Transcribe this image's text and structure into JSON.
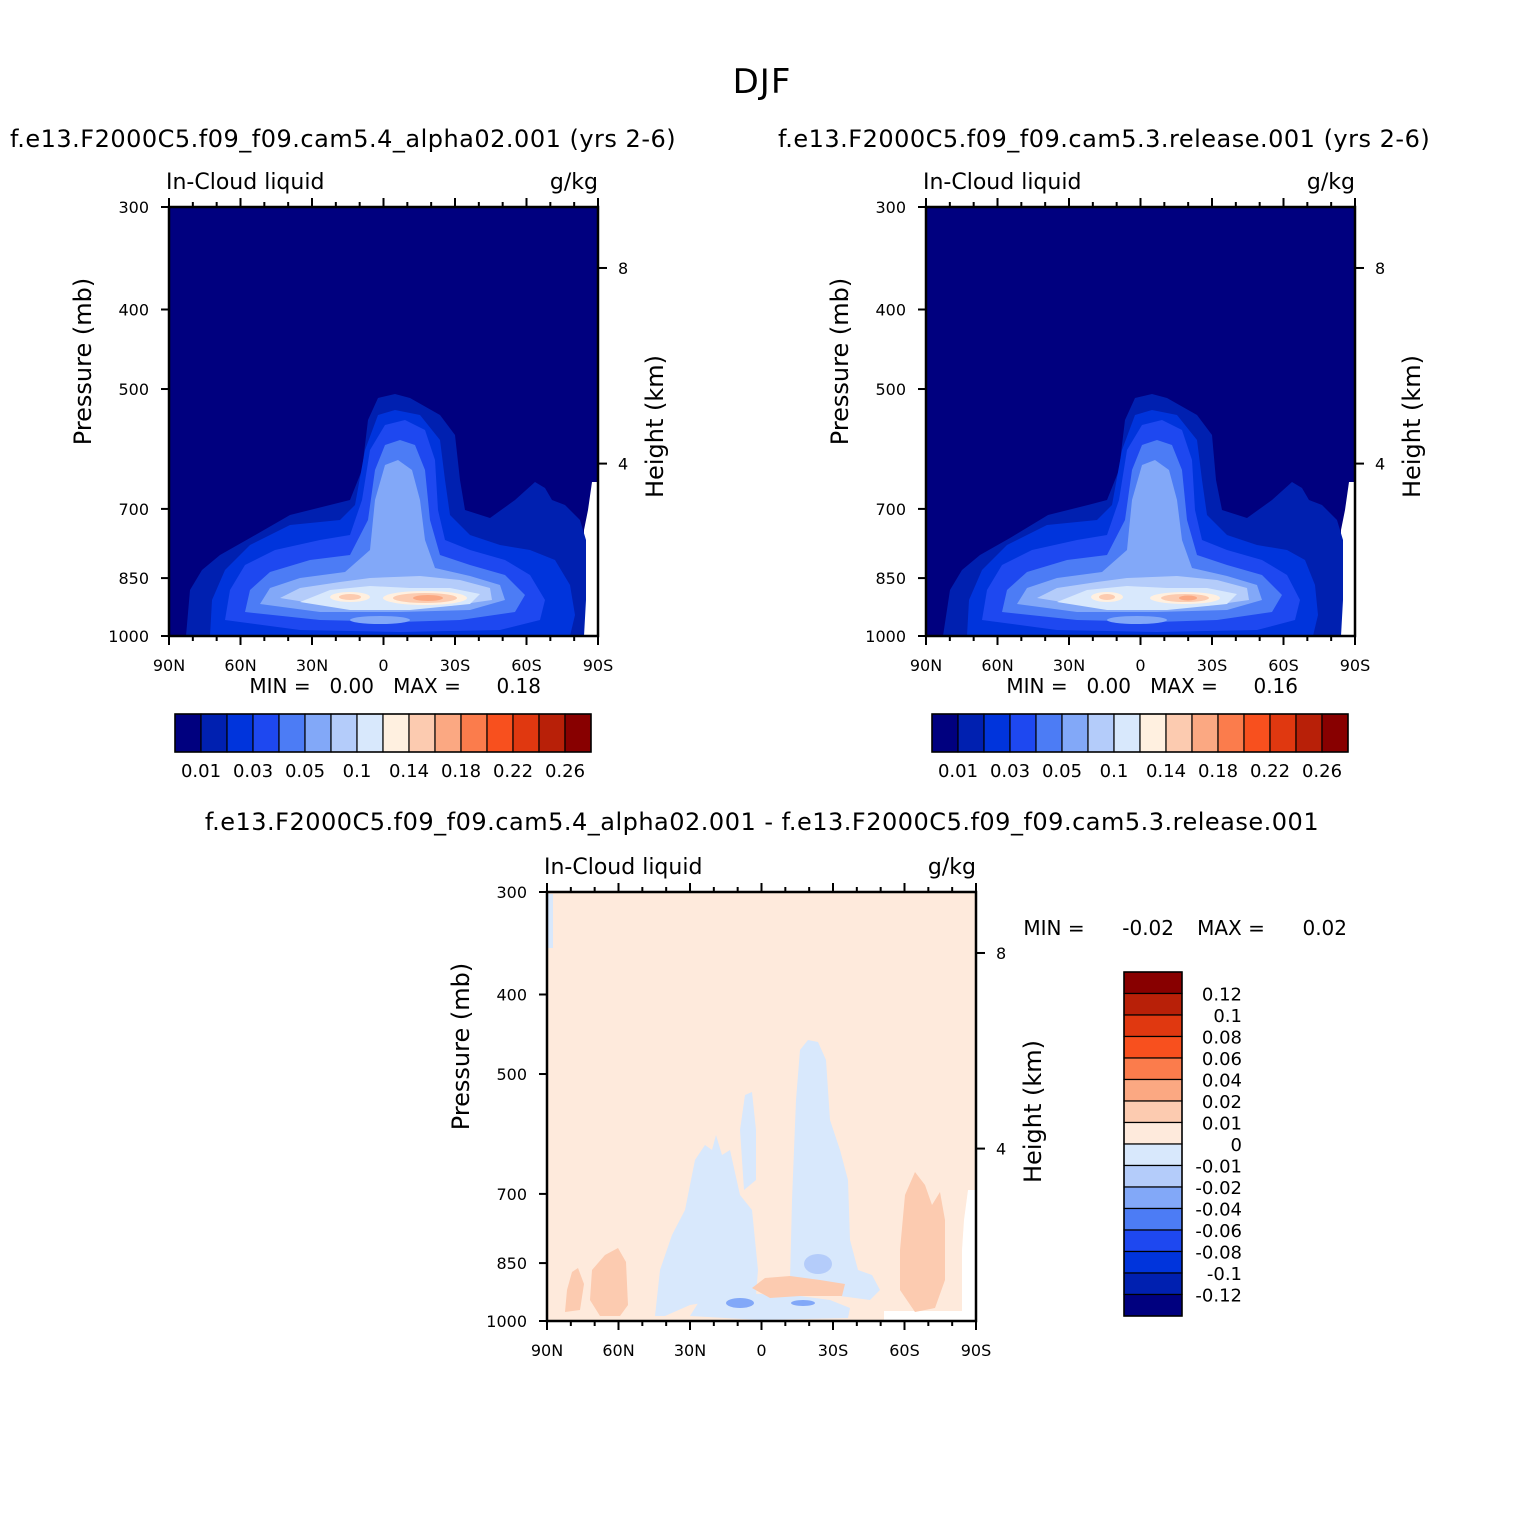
{
  "season": "DJF",
  "colors": {
    "seq": [
      "#00007f",
      "#0020b0",
      "#0034dc",
      "#1e48f0",
      "#4c7cf5",
      "#82a8f8",
      "#b4ccfa",
      "#d8e8fc",
      "#fff0e0",
      "#fccbb0",
      "#fba882",
      "#fb7c4c",
      "#f8501e",
      "#e03810",
      "#b82008",
      "#880000"
    ],
    "diff_seq": [
      "#00007f",
      "#0020b0",
      "#0034dc",
      "#1e48f0",
      "#4c7cf5",
      "#82a8f8",
      "#b4ccfa",
      "#d8e8fc",
      "#feeadc",
      "#fccbb0",
      "#fba882",
      "#fb7c4c",
      "#f8501e",
      "#e03810",
      "#b82008",
      "#880000"
    ]
  },
  "chart_data": [
    {
      "type": "heatmap",
      "title": "f.e13.F2000C5.f09_f09.cam5.4_alpha02.001 (yrs 2-6)",
      "left_label": "In-Cloud liquid",
      "right_label": "g/kg",
      "ylabel": "Pressure (mb)",
      "y2label": "Height (km)",
      "xticks": [
        "90N",
        "60N",
        "30N",
        "0",
        "30S",
        "60S",
        "90S"
      ],
      "yticks": [
        "300",
        "400",
        "500",
        "700",
        "850",
        "1000"
      ],
      "y2ticks": [
        "8",
        "4"
      ],
      "ylim": [
        1000,
        300
      ],
      "x_range": [
        "90N",
        "90S"
      ],
      "min_label": "MIN =",
      "min_value": "0.00",
      "max_label": "MAX =",
      "max_value": "0.18",
      "colorbar_labels": [
        "0.01",
        "0.03",
        "0.05",
        "0.1",
        "0.14",
        "0.18",
        "0.22",
        "0.26"
      ],
      "colorbar_levels": [
        0.01,
        0.02,
        0.03,
        0.04,
        0.05,
        0.06,
        0.08,
        0.1,
        0.12,
        0.14,
        0.16,
        0.18,
        0.2,
        0.22,
        0.24,
        0.26
      ]
    },
    {
      "type": "heatmap",
      "title": "f.e13.F2000C5.f09_f09.cam5.3.release.001 (yrs 2-6)",
      "left_label": "In-Cloud liquid",
      "right_label": "g/kg",
      "ylabel": "Pressure (mb)",
      "y2label": "Height (km)",
      "xticks": [
        "90N",
        "60N",
        "30N",
        "0",
        "30S",
        "60S",
        "90S"
      ],
      "yticks": [
        "300",
        "400",
        "500",
        "700",
        "850",
        "1000"
      ],
      "y2ticks": [
        "8",
        "4"
      ],
      "ylim": [
        1000,
        300
      ],
      "x_range": [
        "90N",
        "90S"
      ],
      "min_label": "MIN =",
      "min_value": "0.00",
      "max_label": "MAX =",
      "max_value": "0.16",
      "colorbar_labels": [
        "0.01",
        "0.03",
        "0.05",
        "0.1",
        "0.14",
        "0.18",
        "0.22",
        "0.26"
      ],
      "colorbar_levels": [
        0.01,
        0.02,
        0.03,
        0.04,
        0.05,
        0.06,
        0.08,
        0.1,
        0.12,
        0.14,
        0.16,
        0.18,
        0.2,
        0.22,
        0.24,
        0.26
      ]
    },
    {
      "type": "heatmap",
      "title": "f.e13.F2000C5.f09_f09.cam5.4_alpha02.001 - f.e13.F2000C5.f09_f09.cam5.3.release.001",
      "left_label": "In-Cloud liquid",
      "right_label": "g/kg",
      "ylabel": "Pressure (mb)",
      "y2label": "Height (km)",
      "xticks": [
        "90N",
        "60N",
        "30N",
        "0",
        "30S",
        "60S",
        "90S"
      ],
      "yticks": [
        "300",
        "400",
        "500",
        "700",
        "850",
        "1000"
      ],
      "y2ticks": [
        "8",
        "4"
      ],
      "ylim": [
        1000,
        300
      ],
      "x_range": [
        "90N",
        "90S"
      ],
      "min_label": "MIN =",
      "min_value": "-0.02",
      "max_label": "MAX =",
      "max_value": "0.02",
      "colorbar_labels": [
        "0.12",
        "0.1",
        "0.08",
        "0.06",
        "0.04",
        "0.02",
        "0.01",
        "0",
        "-0.01",
        "-0.02",
        "-0.04",
        "-0.06",
        "-0.08",
        "-0.1",
        "-0.12"
      ]
    }
  ]
}
